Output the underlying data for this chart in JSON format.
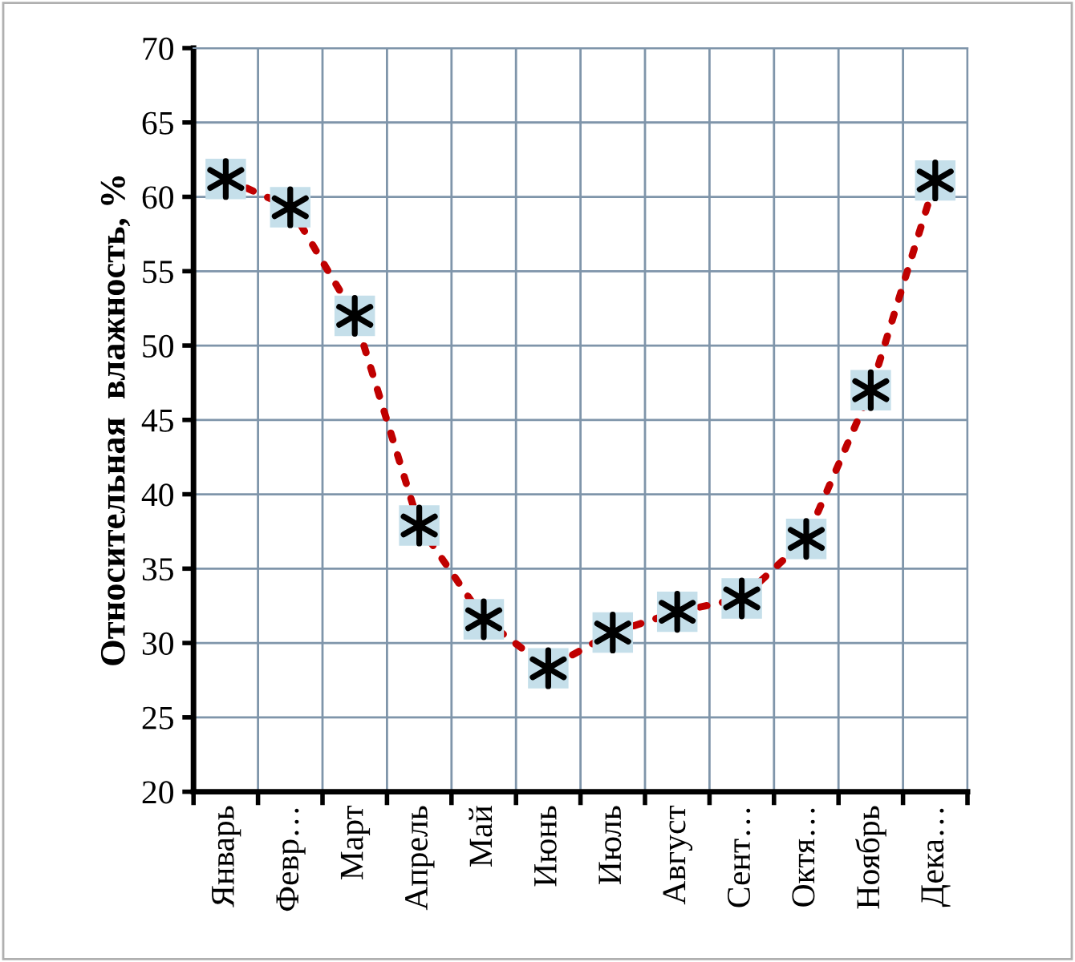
{
  "chart_data": {
    "type": "line",
    "ylabel": "Относительная  влажность, %",
    "categories": [
      "Январь",
      "Февр…",
      "Март",
      "Апрель",
      "Май",
      "Июнь",
      "Июль",
      "Август",
      "Сент…",
      "Октя…",
      "Ноябрь",
      "Дека…"
    ],
    "series": [
      {
        "color": "#c00000",
        "values": [
          61.2,
          59.3,
          52.0,
          37.9,
          31.6,
          28.3,
          30.7,
          32.1,
          33.0,
          37.0,
          47.0,
          61.1
        ]
      }
    ],
    "ylim": [
      20,
      70
    ],
    "yticks": [
      20,
      25,
      30,
      35,
      40,
      45,
      50,
      55,
      60,
      65,
      70
    ],
    "grid": true,
    "marker": "square",
    "line_style": "dotted",
    "legend": false
  }
}
